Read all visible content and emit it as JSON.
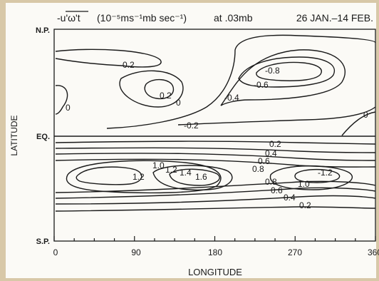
{
  "chart_data": {
    "type": "contour",
    "title_variable": "-u'ω't",
    "title_units": "(10⁻⁵ms⁻¹mb sec⁻¹)",
    "title_level": "at .03mb",
    "title_dates": "26 JAN.–14 FEB.",
    "xlabel": "LONGITUDE",
    "ylabel": "LATITUDE",
    "x_ticks": [
      "0",
      "90",
      "180",
      "270",
      "360"
    ],
    "y_ticks": [
      "N.P.",
      "EQ.",
      "S.P."
    ],
    "xlim": [
      0,
      360
    ],
    "ylim": [
      "S.P.",
      "N.P."
    ],
    "contour_labels": [
      {
        "value": "-0.2",
        "lon": 60,
        "lat": "north-mid"
      },
      {
        "value": "-0.8",
        "lon": 265,
        "lat": "north-mid"
      },
      {
        "value": "-0.6",
        "lon": 240,
        "lat": "north-mid"
      },
      {
        "value": "0.2",
        "lon": 130,
        "lat": "north-low"
      },
      {
        "value": "0",
        "lon": 10,
        "lat": "north-low"
      },
      {
        "value": "0",
        "lon": 150,
        "lat": "north-low"
      },
      {
        "value": "-0.4",
        "lon": 205,
        "lat": "north-low"
      },
      {
        "value": "-0.2",
        "lon": 160,
        "lat": "near-equator"
      },
      {
        "value": "0",
        "lon": 355,
        "lat": "near-equator"
      },
      {
        "value": "0.2",
        "lon": 268,
        "lat": "south-low"
      },
      {
        "value": "0.4",
        "lon": 258,
        "lat": "south-low"
      },
      {
        "value": "0.6",
        "lon": 252,
        "lat": "south-low"
      },
      {
        "value": "0.8",
        "lon": 242,
        "lat": "south-low"
      },
      {
        "value": "1.0",
        "lon": 120,
        "lat": "south-low"
      },
      {
        "value": "1.2",
        "lon": 72,
        "lat": "south-low"
      },
      {
        "value": "1.2",
        "lon": 133,
        "lat": "south-low"
      },
      {
        "value": "1.4",
        "lon": 150,
        "lat": "south-low"
      },
      {
        "value": "1.6",
        "lon": 182,
        "lat": "south-low"
      },
      {
        "value": "0.8",
        "lon": 245,
        "lat": "south-low"
      },
      {
        "value": "1.0",
        "lon": 290,
        "lat": "south-low"
      },
      {
        "value": "-1.2",
        "lon": 310,
        "lat": "south-low"
      },
      {
        "value": "0.6",
        "lon": 250,
        "lat": "south-low"
      },
      {
        "value": "0.4",
        "lon": 262,
        "lat": "south-low"
      },
      {
        "value": "0.2",
        "lon": 275,
        "lat": "south-low"
      }
    ]
  }
}
